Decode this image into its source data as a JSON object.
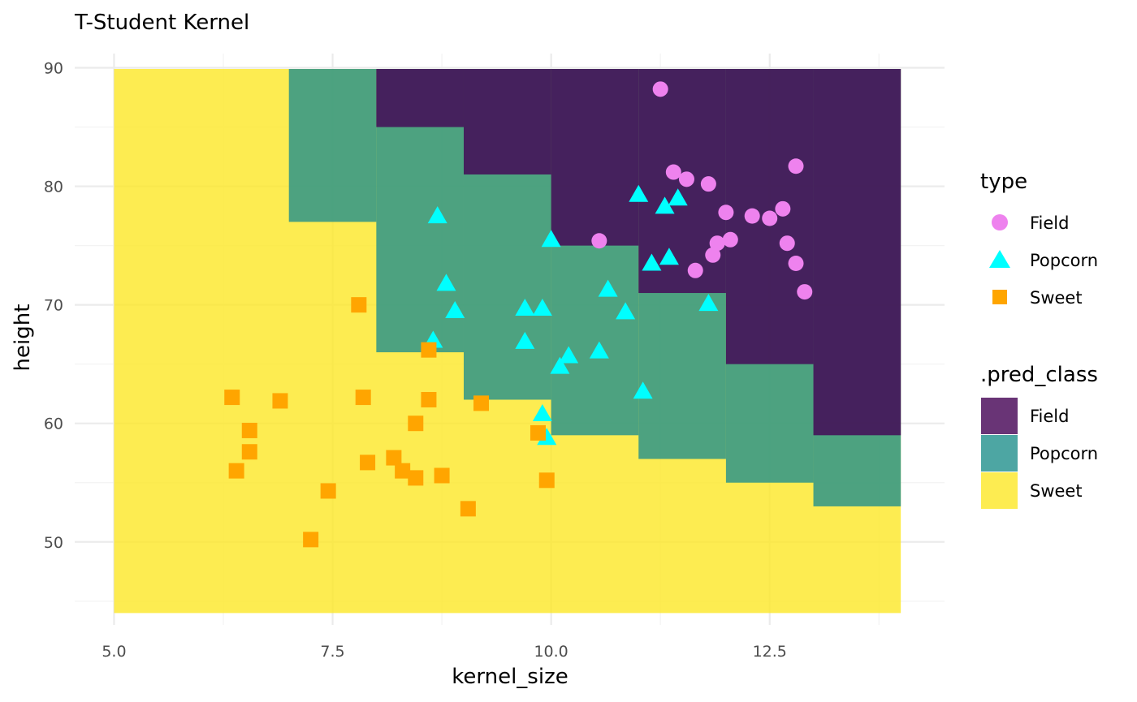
{
  "chart_data": {
    "type": "scatter",
    "title": "T-Student Kernel",
    "xlabel": "kernel_size",
    "ylabel": "height",
    "xlim": [
      4.55,
      14.5
    ],
    "ylim": [
      43.0,
      91.2
    ],
    "x_ticks": [
      5.0,
      7.5,
      10.0,
      12.5
    ],
    "x_tick_labels": [
      "5.0",
      "7.5",
      "10.0",
      "12.5"
    ],
    "y_ticks": [
      50,
      60,
      70,
      80,
      90
    ],
    "y_tick_labels": [
      "50",
      "60",
      "70",
      "80",
      "90"
    ],
    "grid": true,
    "legend_position": "right",
    "colors": {
      "Field_region": "#440154",
      "Popcorn_region": "#21908C",
      "Sweet_region": "#FDE725",
      "Field_point": "#EE82EE",
      "Popcorn_point": "#00FFFF",
      "Sweet_point": "#FFA500"
    },
    "regions": [
      {
        "class": "Sweet",
        "x0": 5.0,
        "x1": 14.0,
        "y0": 44.0,
        "y1": 89.9
      },
      {
        "class": "Popcorn",
        "x0": 7.0,
        "x1": 8.0,
        "y0": 77.0,
        "y1": 89.9
      },
      {
        "class": "Popcorn",
        "x0": 8.0,
        "x1": 9.0,
        "y0": 66.0,
        "y1": 89.9
      },
      {
        "class": "Popcorn",
        "x0": 9.0,
        "x1": 10.0,
        "y0": 62.0,
        "y1": 89.9
      },
      {
        "class": "Popcorn",
        "x0": 10.0,
        "x1": 11.0,
        "y0": 59.0,
        "y1": 89.9
      },
      {
        "class": "Popcorn",
        "x0": 11.0,
        "x1": 12.0,
        "y0": 57.0,
        "y1": 89.9
      },
      {
        "class": "Popcorn",
        "x0": 12.0,
        "x1": 13.0,
        "y0": 55.0,
        "y1": 89.9
      },
      {
        "class": "Popcorn",
        "x0": 13.0,
        "x1": 14.0,
        "y0": 53.0,
        "y1": 89.9
      },
      {
        "class": "Field",
        "x0": 8.0,
        "x1": 9.0,
        "y0": 85.0,
        "y1": 89.9
      },
      {
        "class": "Field",
        "x0": 9.0,
        "x1": 10.0,
        "y0": 81.0,
        "y1": 89.9
      },
      {
        "class": "Field",
        "x0": 10.0,
        "x1": 11.0,
        "y0": 75.0,
        "y1": 89.9
      },
      {
        "class": "Field",
        "x0": 11.0,
        "x1": 12.0,
        "y0": 71.0,
        "y1": 89.9
      },
      {
        "class": "Field",
        "x0": 12.0,
        "x1": 13.0,
        "y0": 65.0,
        "y1": 89.9
      },
      {
        "class": "Field",
        "x0": 13.0,
        "x1": 14.0,
        "y0": 59.0,
        "y1": 89.9
      }
    ],
    "series": [
      {
        "name": "Field",
        "shape": "circle",
        "points": [
          [
            11.25,
            88.2
          ],
          [
            11.4,
            81.2
          ],
          [
            11.55,
            80.6
          ],
          [
            11.8,
            80.2
          ],
          [
            12.8,
            81.7
          ],
          [
            12.0,
            77.8
          ],
          [
            12.3,
            77.5
          ],
          [
            12.5,
            77.3
          ],
          [
            12.65,
            78.1
          ],
          [
            10.55,
            75.4
          ],
          [
            11.9,
            75.2
          ],
          [
            12.05,
            75.5
          ],
          [
            11.85,
            74.2
          ],
          [
            12.7,
            75.2
          ],
          [
            12.8,
            73.5
          ],
          [
            11.65,
            72.9
          ],
          [
            12.9,
            71.1
          ]
        ]
      },
      {
        "name": "Popcorn",
        "shape": "triangle",
        "points": [
          [
            8.7,
            77.5
          ],
          [
            10.0,
            75.5
          ],
          [
            11.0,
            79.3
          ],
          [
            11.3,
            78.3
          ],
          [
            11.45,
            79.0
          ],
          [
            11.15,
            73.5
          ],
          [
            11.35,
            74.0
          ],
          [
            8.8,
            71.8
          ],
          [
            8.9,
            69.5
          ],
          [
            10.65,
            71.3
          ],
          [
            9.7,
            69.7
          ],
          [
            9.9,
            69.7
          ],
          [
            10.85,
            69.4
          ],
          [
            11.8,
            70.1
          ],
          [
            8.65,
            67.0
          ],
          [
            9.7,
            66.9
          ],
          [
            10.2,
            65.7
          ],
          [
            10.1,
            64.8
          ],
          [
            10.55,
            66.1
          ],
          [
            11.05,
            62.7
          ],
          [
            9.9,
            60.8
          ],
          [
            9.95,
            58.8
          ]
        ]
      },
      {
        "name": "Sweet",
        "shape": "square",
        "points": [
          [
            7.8,
            70.0
          ],
          [
            8.6,
            66.2
          ],
          [
            6.35,
            62.2
          ],
          [
            6.9,
            61.9
          ],
          [
            7.85,
            62.2
          ],
          [
            8.6,
            62.0
          ],
          [
            9.2,
            61.7
          ],
          [
            6.55,
            59.4
          ],
          [
            6.55,
            57.6
          ],
          [
            8.45,
            60.0
          ],
          [
            9.85,
            59.2
          ],
          [
            6.4,
            56.0
          ],
          [
            7.9,
            56.7
          ],
          [
            8.2,
            57.1
          ],
          [
            8.3,
            56.0
          ],
          [
            8.45,
            55.4
          ],
          [
            8.75,
            55.6
          ],
          [
            9.95,
            55.2
          ],
          [
            7.45,
            54.3
          ],
          [
            9.05,
            52.8
          ],
          [
            7.25,
            50.2
          ]
        ]
      }
    ]
  },
  "legend": {
    "type_title": "type",
    "type_items": [
      "Field",
      "Popcorn",
      "Sweet"
    ],
    "pred_title": ".pred_class",
    "pred_items": [
      "Field",
      "Popcorn",
      "Sweet"
    ]
  }
}
